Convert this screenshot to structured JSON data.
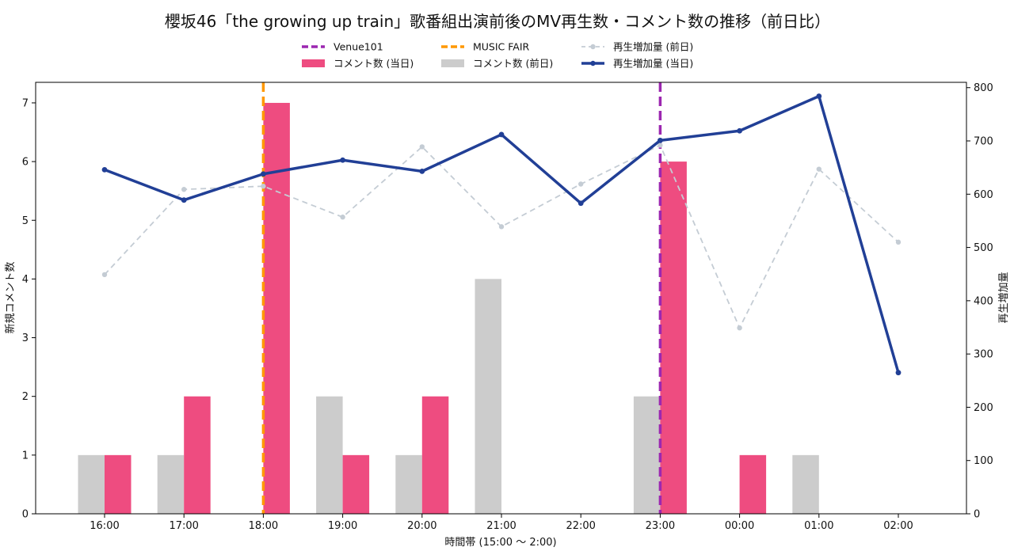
{
  "chart_data": {
    "type": "bar+line",
    "title": "櫻坂46「the growing up train」歌番組出演前後のMV再生数・コメント数の推移（前日比）",
    "xlabel": "時間帯 (15:00 〜 2:00)",
    "ylabel_left": "新規コメント数",
    "ylabel_right": "再生増加量",
    "categories": [
      "16:00",
      "17:00",
      "18:00",
      "19:00",
      "20:00",
      "21:00",
      "22:00",
      "23:00",
      "00:00",
      "01:00",
      "02:00"
    ],
    "ylim_left": [
      0,
      7.35
    ],
    "ylim_right": [
      0,
      810
    ],
    "yticks_left": [
      0,
      1,
      2,
      3,
      4,
      5,
      6,
      7
    ],
    "yticks_right": [
      0,
      100,
      200,
      300,
      400,
      500,
      600,
      700,
      800
    ],
    "series": [
      {
        "name": "コメント数 (前日)",
        "kind": "bar",
        "axis": "left",
        "color": "#cccccc",
        "values": [
          1,
          1,
          0,
          2,
          1,
          4,
          0,
          2,
          0,
          1,
          0
        ]
      },
      {
        "name": "コメント数 (当日)",
        "kind": "bar",
        "axis": "left",
        "color": "#ee4c80",
        "values": [
          1,
          2,
          7,
          1,
          2,
          0,
          0,
          6,
          1,
          0,
          0
        ]
      },
      {
        "name": "再生増加量 (前日)",
        "kind": "line",
        "axis": "right",
        "color": "#c4ccd4",
        "style": "dashed",
        "values": [
          449,
          609,
          615,
          557,
          689,
          539,
          619,
          692,
          349,
          647,
          510
        ]
      },
      {
        "name": "再生増加量 (当日)",
        "kind": "line",
        "axis": "right",
        "color": "#213f96",
        "style": "solid",
        "values": [
          646,
          589,
          638,
          664,
          643,
          712,
          583,
          701,
          719,
          784,
          265
        ]
      }
    ],
    "events": [
      {
        "name": "Venue101",
        "at": "23:00",
        "color": "#9c27b0"
      },
      {
        "name": "MUSIC FAIR",
        "at": "18:00",
        "color": "#ff9800"
      }
    ],
    "legend": {
      "placement": "top-center",
      "order": [
        "Venue101",
        "コメント数 (当日)",
        "MUSIC FAIR",
        "コメント数 (前日)",
        "再生増加量 (前日)",
        "再生増加量 (当日)"
      ]
    }
  }
}
